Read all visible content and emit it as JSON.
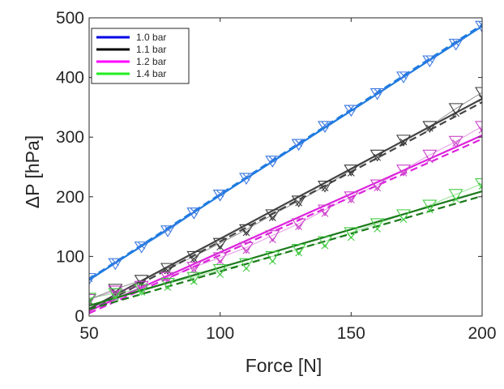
{
  "chart_data": {
    "type": "line",
    "xlabel": "Force [N]",
    "ylabel": "ΔP [hPa]",
    "xlim": [
      50,
      200
    ],
    "ylim": [
      0,
      500
    ],
    "xticks": [
      50,
      100,
      150,
      200
    ],
    "yticks": [
      0,
      100,
      200,
      300,
      400,
      500
    ],
    "grid": false,
    "legend_position": "top-left",
    "series": [
      {
        "name": "1.0 bar",
        "color": "#0000e6",
        "fit_color": "#1e7be0",
        "marker_color": "#3a78e0",
        "x": [
          50,
          60,
          70,
          80,
          90,
          100,
          110,
          120,
          130,
          140,
          150,
          160,
          170,
          180,
          190,
          200
        ],
        "y": [
          63,
          88,
          116,
          143,
          173,
          203,
          231,
          260,
          288,
          318,
          345,
          373,
          401,
          428,
          456,
          486
        ],
        "x2": [
          50,
          60,
          70,
          80,
          90,
          100,
          110,
          120,
          130,
          140,
          150,
          160,
          170,
          180,
          190,
          200
        ],
        "y2": [
          63,
          90,
          118,
          146,
          175,
          205,
          233,
          262,
          290,
          320,
          348,
          376,
          403,
          430,
          458,
          488
        ]
      },
      {
        "name": "1.1 bar",
        "color": "#000000",
        "fit_color": "#444444",
        "marker_color": "#3a3a3a",
        "x": [
          50,
          60,
          70,
          80,
          90,
          100,
          110,
          120,
          130,
          140,
          150,
          160,
          170,
          180,
          190,
          200
        ],
        "y": [
          28,
          45,
          60,
          80,
          100,
          122,
          145,
          170,
          193,
          218,
          245,
          270,
          295,
          318,
          348,
          375
        ],
        "x2": [
          50,
          60,
          70,
          80,
          90,
          100,
          110,
          120,
          130,
          140,
          150,
          160,
          170,
          180,
          190,
          200
        ],
        "y2": [
          24,
          40,
          55,
          76,
          96,
          116,
          140,
          165,
          190,
          215,
          240,
          266,
          292,
          315,
          340,
          365
        ]
      },
      {
        "name": "1.2 bar",
        "color": "#ff00ff",
        "fit_color": "#dd22dd",
        "marker_color": "#cc44cc",
        "x": [
          50,
          60,
          70,
          80,
          90,
          100,
          110,
          120,
          130,
          140,
          150,
          160,
          170,
          180,
          190,
          200
        ],
        "y": [
          28,
          42,
          50,
          65,
          82,
          98,
          115,
          135,
          155,
          178,
          200,
          220,
          245,
          270,
          293,
          318
        ],
        "x2": [
          50,
          60,
          70,
          80,
          90,
          100,
          110,
          120,
          130,
          140,
          150,
          160,
          170,
          180,
          190,
          200
        ],
        "y2": [
          26,
          38,
          46,
          60,
          78,
          92,
          110,
          128,
          150,
          172,
          195,
          215,
          240,
          262,
          290,
          312
        ]
      },
      {
        "name": "1.4 bar",
        "color": "#22ee22",
        "fit_color": "#1b7a1b",
        "marker_color": "#44cc44",
        "x": [
          50,
          60,
          70,
          80,
          90,
          100,
          110,
          120,
          130,
          140,
          150,
          160,
          170,
          180,
          190,
          200
        ],
        "y": [
          30,
          38,
          45,
          55,
          65,
          78,
          88,
          100,
          112,
          125,
          140,
          155,
          170,
          186,
          204,
          222
        ],
        "x2": [
          50,
          60,
          70,
          80,
          90,
          100,
          110,
          120,
          130,
          140,
          150,
          160,
          170,
          180,
          190,
          200
        ],
        "y2": [
          26,
          32,
          40,
          48,
          58,
          70,
          80,
          92,
          106,
          118,
          132,
          146,
          162,
          178,
          196,
          218
        ]
      }
    ]
  }
}
